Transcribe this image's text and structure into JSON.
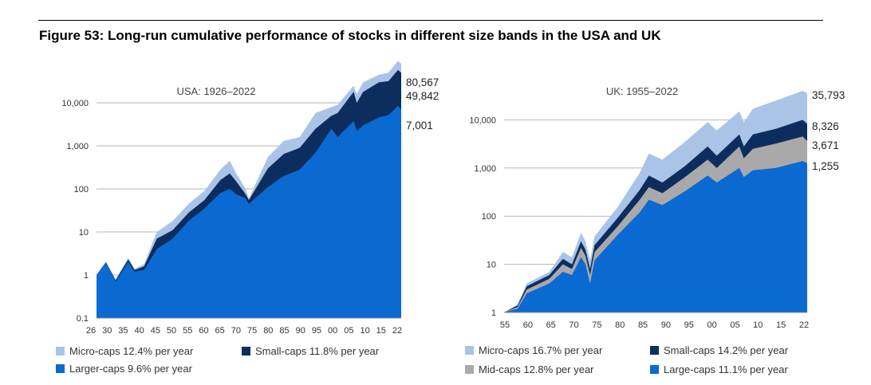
{
  "figure_title": "Figure 53: Long-run cumulative performance of stocks in different size bands in the USA and UK",
  "colors": {
    "micro": "#a9c4e7",
    "small": "#0d2d5e",
    "mid": "#a9a9a9",
    "large": "#0a6ad2",
    "grid": "#b5b5b5"
  },
  "chart_data": [
    {
      "type": "area",
      "title": "USA: 1926–2022",
      "scale": "log",
      "ylim": [
        0.1,
        100000
      ],
      "y_ticks": [
        "0.1",
        "1",
        "10",
        "100",
        "1,000",
        "10,000"
      ],
      "x_ticks": [
        "26",
        "30",
        "35",
        "40",
        "45",
        "50",
        "55",
        "60",
        "65",
        "70",
        "75",
        "80",
        "85",
        "90",
        "95",
        "00",
        "05",
        "10",
        "15",
        "22"
      ],
      "x": [
        1926,
        1929,
        1932,
        1936,
        1938,
        1941,
        1945,
        1950,
        1955,
        1960,
        1965,
        1968,
        1970,
        1973,
        1974,
        1980,
        1985,
        1990,
        1995,
        2000,
        2002,
        2007,
        2008,
        2010,
        2015,
        2018,
        2021,
        2022
      ],
      "series": [
        {
          "name": "Micro-caps 12.4% per year",
          "key": "micro",
          "end_label": "80,567",
          "values": [
            1,
            2,
            0.8,
            2.5,
            1.4,
            1.8,
            10,
            18,
            45,
            90,
            280,
            450,
            230,
            100,
            60,
            550,
            1300,
            1600,
            5800,
            8000,
            9000,
            25000,
            16000,
            30000,
            45000,
            50000,
            95000,
            80567
          ]
        },
        {
          "name": "Small-caps 11.8% per year",
          "key": "small",
          "end_label": "49,842",
          "values": [
            1,
            2,
            0.75,
            2.3,
            1.3,
            1.6,
            7,
            11,
            28,
            55,
            160,
            230,
            150,
            75,
            55,
            300,
            650,
            900,
            2500,
            5000,
            5800,
            18000,
            10000,
            18000,
            30000,
            32000,
            58000,
            49842
          ]
        },
        {
          "name": "Larger-caps 9.6% per year",
          "key": "large",
          "end_label": "7,001",
          "values": [
            1,
            2,
            0.7,
            2,
            1.2,
            1.3,
            4,
            7,
            18,
            35,
            80,
            100,
            75,
            60,
            45,
            110,
            200,
            280,
            700,
            2500,
            1600,
            3800,
            2200,
            3000,
            4600,
            5200,
            8500,
            7001
          ]
        }
      ],
      "legend": [
        "Micro-caps 12.4% per year",
        "Small-caps 11.8% per year",
        "Larger-caps 9.6% per year"
      ]
    },
    {
      "type": "area",
      "title": "UK: 1955–2022",
      "scale": "log",
      "ylim": [
        1,
        100000
      ],
      "y_ticks": [
        "1",
        "10",
        "100",
        "1,000",
        "10,000"
      ],
      "x_ticks": [
        "55",
        "60",
        "65",
        "70",
        "75",
        "80",
        "85",
        "90",
        "95",
        "00",
        "05",
        "10",
        "15",
        "22"
      ],
      "x": [
        1955,
        1958,
        1960,
        1965,
        1968,
        1970,
        1972,
        1973,
        1974,
        1975,
        1980,
        1985,
        1987,
        1990,
        1995,
        2000,
        2002,
        2007,
        2008,
        2010,
        2015,
        2021,
        2022
      ],
      "series": [
        {
          "name": "Micro-caps 16.7% per year",
          "key": "micro",
          "end_label": "35,793",
          "values": [
            1,
            1.5,
            4,
            7,
            18,
            14,
            45,
            30,
            12,
            38,
            150,
            800,
            2000,
            1500,
            3500,
            9000,
            6000,
            15000,
            9000,
            17000,
            25000,
            40000,
            35793
          ]
        },
        {
          "name": "Small-caps 14.2% per year",
          "key": "small",
          "end_label": "8,326",
          "values": [
            1,
            1.4,
            3.5,
            6,
            13,
            10,
            30,
            20,
            8,
            25,
            90,
            350,
            700,
            500,
            1100,
            2800,
            1800,
            5000,
            2800,
            5000,
            6500,
            10000,
            8326
          ]
        },
        {
          "name": "Mid-caps 12.8% per year",
          "key": "mid",
          "end_label": "3,671",
          "values": [
            1,
            1.3,
            3,
            5,
            10,
            8,
            22,
            15,
            6,
            18,
            60,
            220,
            400,
            300,
            650,
            1500,
            1000,
            2800,
            1600,
            2500,
            3200,
            4500,
            3671
          ]
        },
        {
          "name": "Large-caps 11.1% per year",
          "key": "large",
          "end_label": "1,255",
          "values": [
            1,
            1.2,
            2.5,
            4,
            7,
            6,
            14,
            10,
            4,
            12,
            40,
            120,
            220,
            170,
            330,
            700,
            500,
            1000,
            650,
            900,
            1000,
            1400,
            1255
          ]
        }
      ],
      "legend": [
        "Micro-caps 16.7% per year",
        "Small-caps 14.2% per year",
        "Mid-caps 12.8% per year",
        "Large-caps 11.1% per year"
      ]
    }
  ]
}
